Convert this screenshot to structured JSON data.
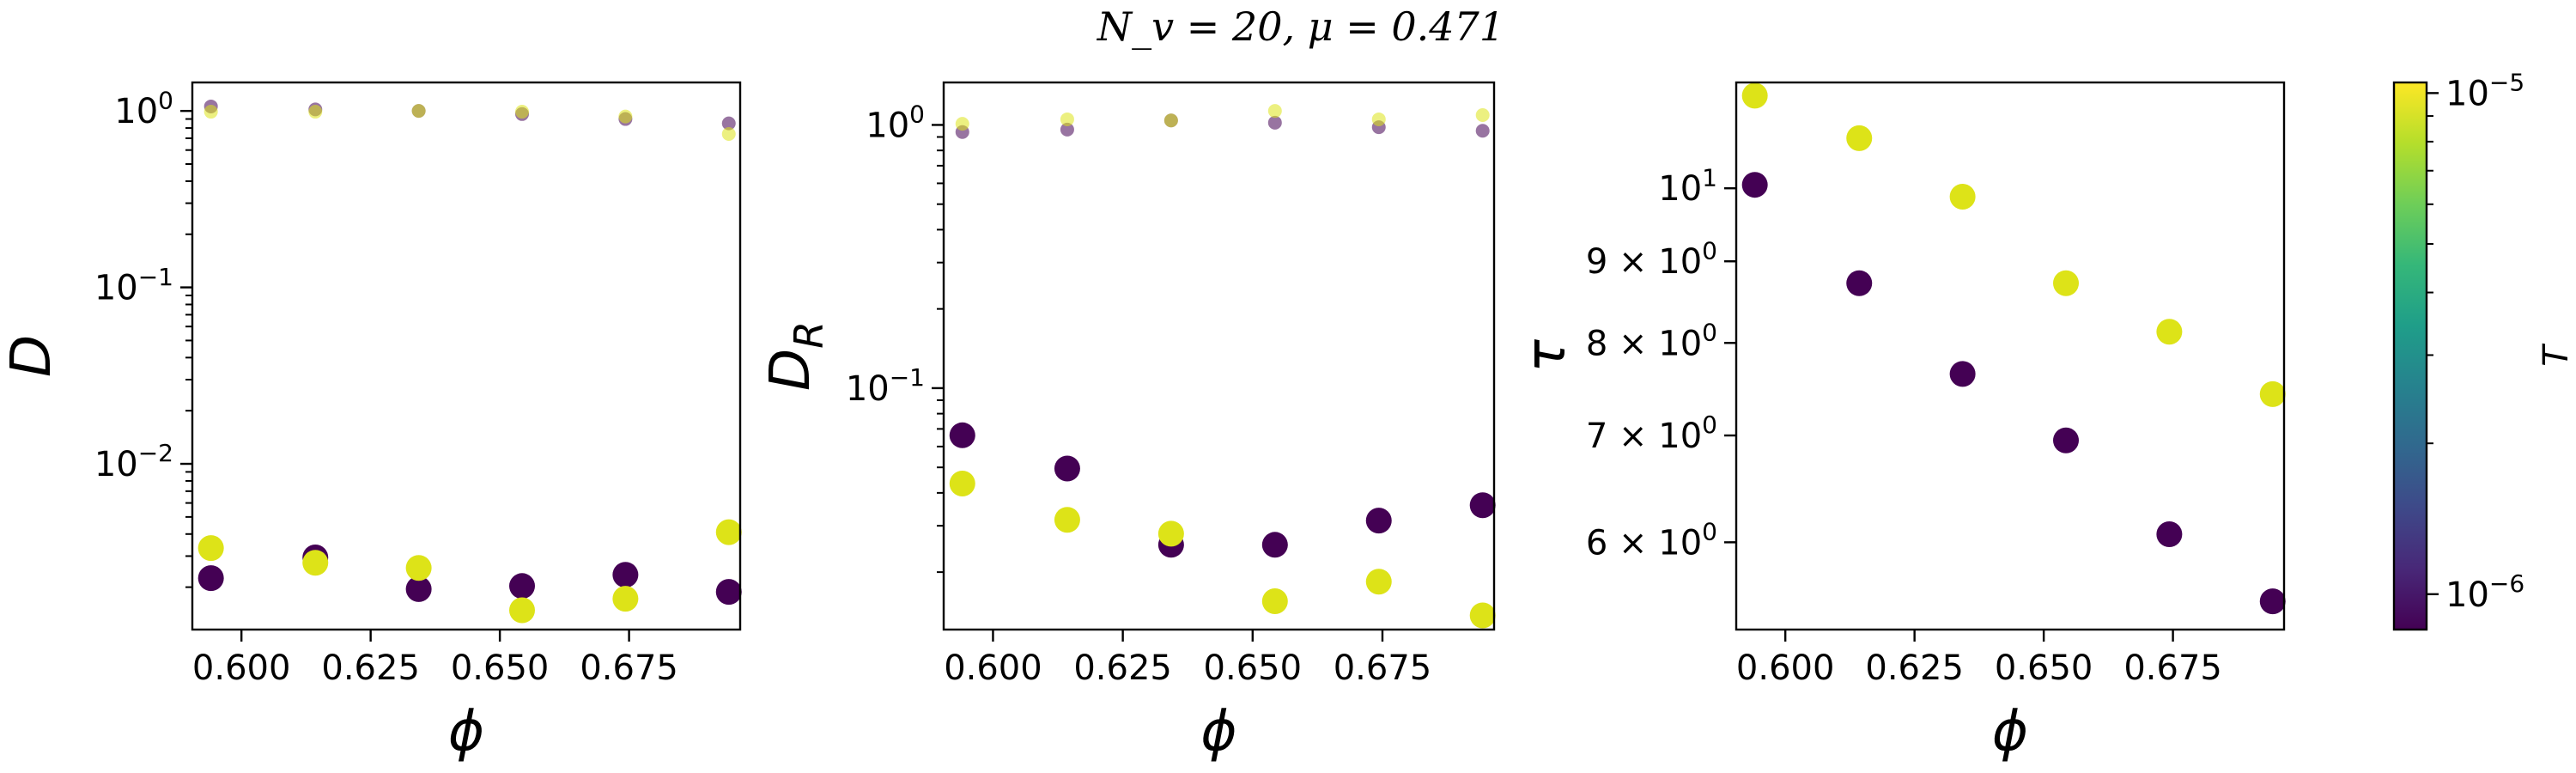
{
  "figure": {
    "title": "N_v = 20, μ = 0.471"
  },
  "colors": {
    "low_T": "#440154",
    "high_T": "#dde318"
  },
  "colorbar": {
    "label": "T",
    "ticks": [
      "10^{-5}",
      "10^{-6}"
    ],
    "range": [
      8.5e-07,
      1.05e-05
    ],
    "scale": "log",
    "colormap": "viridis"
  },
  "chart_data": [
    {
      "type": "scatter",
      "panel": "D",
      "xlabel": "ϕ",
      "ylabel": "D",
      "yscale": "log",
      "xlim": [
        0.5905,
        0.6965
      ],
      "ylim": [
        0.00115,
        1.45
      ],
      "xticks": [
        "0.600",
        "0.625",
        "0.650",
        "0.675"
      ],
      "yticks": [
        {
          "value": 1,
          "mantissa": "10",
          "exp": "0"
        },
        {
          "value": 0.1,
          "mantissa": "10",
          "exp": "−1"
        },
        {
          "value": 0.01,
          "mantissa": "10",
          "exp": "−2"
        }
      ],
      "series": [
        {
          "T": "low",
          "marker": "small",
          "x": [
            0.5941,
            0.6143,
            0.6343,
            0.6543,
            0.6743,
            0.6943
          ],
          "y": [
            1.06,
            1.02,
            1.0,
            0.96,
            0.9,
            0.85
          ]
        },
        {
          "T": "high",
          "marker": "small",
          "x": [
            0.5941,
            0.6143,
            0.6343,
            0.6543,
            0.6743,
            0.6943
          ],
          "y": [
            0.99,
            0.99,
            1.0,
            0.99,
            0.93,
            0.74
          ]
        },
        {
          "T": "low",
          "marker": "large",
          "x": [
            0.5941,
            0.6143,
            0.6343,
            0.6543,
            0.6743,
            0.6943
          ],
          "y": [
            0.00225,
            0.00295,
            0.00195,
            0.00203,
            0.00235,
            0.00188
          ]
        },
        {
          "T": "high",
          "marker": "large",
          "x": [
            0.5941,
            0.6143,
            0.6343,
            0.6543,
            0.6743,
            0.6943
          ],
          "y": [
            0.00333,
            0.00275,
            0.00257,
            0.00148,
            0.00172,
            0.0041
          ]
        }
      ]
    },
    {
      "type": "scatter",
      "panel": "D_R",
      "xlabel": "ϕ",
      "ylabel": "D_R",
      "yscale": "log",
      "xlim": [
        0.5905,
        0.6965
      ],
      "ylim": [
        0.0121,
        1.45
      ],
      "xticks": [
        "0.600",
        "0.625",
        "0.650",
        "0.675"
      ],
      "yticks": [
        {
          "value": 1,
          "mantissa": "10",
          "exp": "0"
        },
        {
          "value": 0.1,
          "mantissa": "10",
          "exp": "−1"
        }
      ],
      "series": [
        {
          "T": "low",
          "marker": "small",
          "x": [
            0.5941,
            0.6143,
            0.6343,
            0.6543,
            0.6743,
            0.6943
          ],
          "y": [
            0.94,
            0.96,
            1.04,
            1.02,
            0.98,
            0.95
          ]
        },
        {
          "T": "high",
          "marker": "small",
          "x": [
            0.5941,
            0.6143,
            0.6343,
            0.6543,
            0.6743,
            0.6943
          ],
          "y": [
            1.01,
            1.05,
            1.04,
            1.13,
            1.05,
            1.09
          ]
        },
        {
          "T": "low",
          "marker": "large",
          "x": [
            0.5941,
            0.6143,
            0.6343,
            0.6543,
            0.6743,
            0.6943
          ],
          "y": [
            0.0662,
            0.0495,
            0.0254,
            0.0254,
            0.0314,
            0.0359
          ]
        },
        {
          "T": "high",
          "marker": "large",
          "x": [
            0.5941,
            0.6143,
            0.6343,
            0.6543,
            0.6743,
            0.6943
          ],
          "y": [
            0.0434,
            0.0316,
            0.028,
            0.0155,
            0.0184,
            0.0137
          ]
        }
      ]
    },
    {
      "type": "scatter",
      "panel": "tau",
      "xlabel": "ϕ",
      "ylabel": "τ",
      "yscale": "log",
      "xlim": [
        0.5905,
        0.6965
      ],
      "ylim": [
        5.29,
        11.65
      ],
      "xticks": [
        "0.600",
        "0.625",
        "0.650",
        "0.675"
      ],
      "yticks": [
        {
          "value": 10,
          "mantissa": "10",
          "exp": "1"
        },
        {
          "value": 9,
          "mantissa": "9 × 10",
          "exp": "0"
        },
        {
          "value": 8,
          "mantissa": "8 × 10",
          "exp": "0"
        },
        {
          "value": 7,
          "mantissa": "7 × 10",
          "exp": "0"
        },
        {
          "value": 6,
          "mantissa": "6 × 10",
          "exp": "0"
        }
      ],
      "series": [
        {
          "T": "low",
          "marker": "large",
          "x": [
            0.5941,
            0.6143,
            0.6343,
            0.6543,
            0.6743,
            0.6943
          ],
          "y": [
            10.05,
            8.72,
            7.65,
            6.95,
            6.07,
            5.51
          ]
        },
        {
          "T": "high",
          "marker": "large",
          "x": [
            0.5941,
            0.6143,
            0.6343,
            0.6543,
            0.6743,
            0.6943
          ],
          "y": [
            11.43,
            10.75,
            9.88,
            8.72,
            8.13,
            7.43
          ]
        }
      ]
    }
  ]
}
